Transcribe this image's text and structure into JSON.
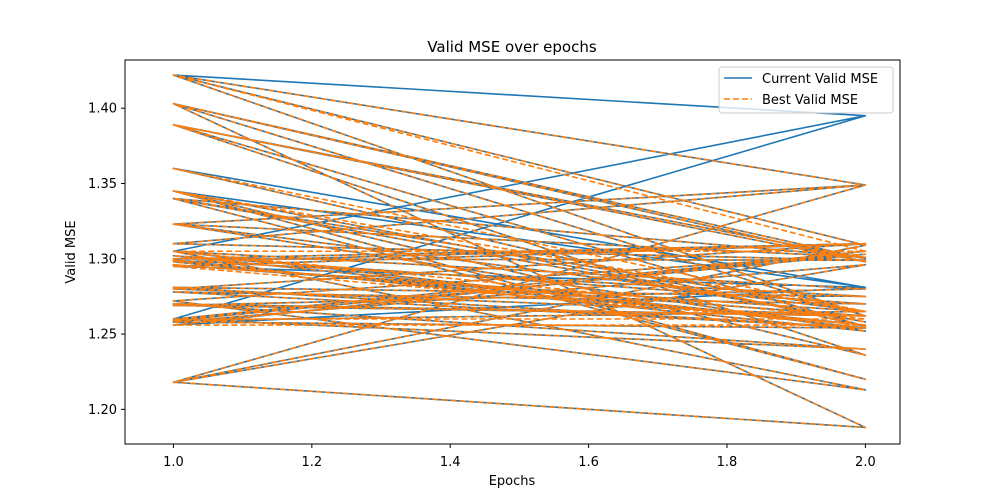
{
  "chart_data": {
    "type": "line",
    "title": "Valid MSE over epochs",
    "xlabel": "Epochs",
    "ylabel": "Valid MSE",
    "xlim": [
      0.93,
      2.05
    ],
    "ylim": [
      1.177,
      1.432
    ],
    "xticks": [
      1.0,
      1.2,
      1.4,
      1.6,
      1.8,
      2.0
    ],
    "xtick_labels": [
      "1.0",
      "1.2",
      "1.4",
      "1.6",
      "1.8",
      "2.0"
    ],
    "yticks": [
      1.2,
      1.25,
      1.3,
      1.35,
      1.4
    ],
    "ytick_labels": [
      "1.20",
      "1.25",
      "1.30",
      "1.35",
      "1.40"
    ],
    "grid": false,
    "legend_position": "top-right",
    "colors": {
      "current": "#1f77b4",
      "best": "#ff7f0e"
    },
    "x": [
      1,
      2,
      1,
      2,
      1,
      2,
      1,
      2,
      1,
      2,
      1,
      2,
      1,
      2,
      1,
      2,
      1,
      2,
      1,
      2,
      1,
      2,
      1,
      2,
      1,
      2,
      1,
      2,
      1,
      2,
      1,
      2,
      1,
      2,
      1,
      2,
      1,
      2,
      1,
      2,
      1,
      2,
      1,
      2,
      1,
      2,
      1,
      2,
      1,
      2,
      1,
      2,
      1,
      2,
      1,
      2,
      1,
      2,
      1,
      2,
      1,
      2,
      1,
      2,
      1,
      2,
      1,
      2,
      1,
      2,
      1
    ],
    "series": [
      {
        "name": "Current Valid MSE",
        "style": "solid",
        "values": [
          1.26,
          1.395,
          1.305,
          1.395,
          1.422,
          1.349,
          1.218,
          1.188,
          1.403,
          1.3,
          1.389,
          1.255,
          1.36,
          1.281,
          1.345,
          1.22,
          1.34,
          1.265,
          1.323,
          1.349,
          1.31,
          1.299,
          1.3,
          1.31,
          1.28,
          1.262,
          1.27,
          1.24,
          1.26,
          1.305,
          1.256,
          1.281,
          1.295,
          1.31,
          1.298,
          1.256,
          1.302,
          1.27,
          1.278,
          1.254,
          1.258,
          1.296,
          1.218,
          1.309,
          1.422,
          1.262,
          1.403,
          1.298,
          1.389,
          1.236,
          1.345,
          1.258,
          1.34,
          1.301,
          1.323,
          1.252,
          1.299,
          1.275,
          1.281,
          1.254,
          1.305,
          1.213,
          1.272,
          1.303,
          1.259,
          1.265,
          1.296,
          1.262,
          1.269,
          1.28,
          1.305
        ]
      },
      {
        "name": "Best Valid MSE",
        "style": "dashed",
        "values": [
          1.26,
          1.26,
          1.305,
          1.305,
          1.422,
          1.349,
          1.218,
          1.188,
          1.403,
          1.3,
          1.389,
          1.255,
          1.36,
          1.265,
          1.345,
          1.22,
          1.34,
          1.265,
          1.323,
          1.349,
          1.31,
          1.299,
          1.3,
          1.31,
          1.28,
          1.262,
          1.27,
          1.24,
          1.26,
          1.305,
          1.256,
          1.256,
          1.295,
          1.31,
          1.298,
          1.256,
          1.302,
          1.27,
          1.278,
          1.254,
          1.258,
          1.296,
          1.218,
          1.309,
          1.422,
          1.262,
          1.403,
          1.298,
          1.389,
          1.236,
          1.345,
          1.258,
          1.34,
          1.301,
          1.323,
          1.252,
          1.299,
          1.275,
          1.281,
          1.254,
          1.305,
          1.213,
          1.272,
          1.303,
          1.259,
          1.265,
          1.296,
          1.262,
          1.269,
          1.28,
          1.305
        ]
      }
    ]
  }
}
